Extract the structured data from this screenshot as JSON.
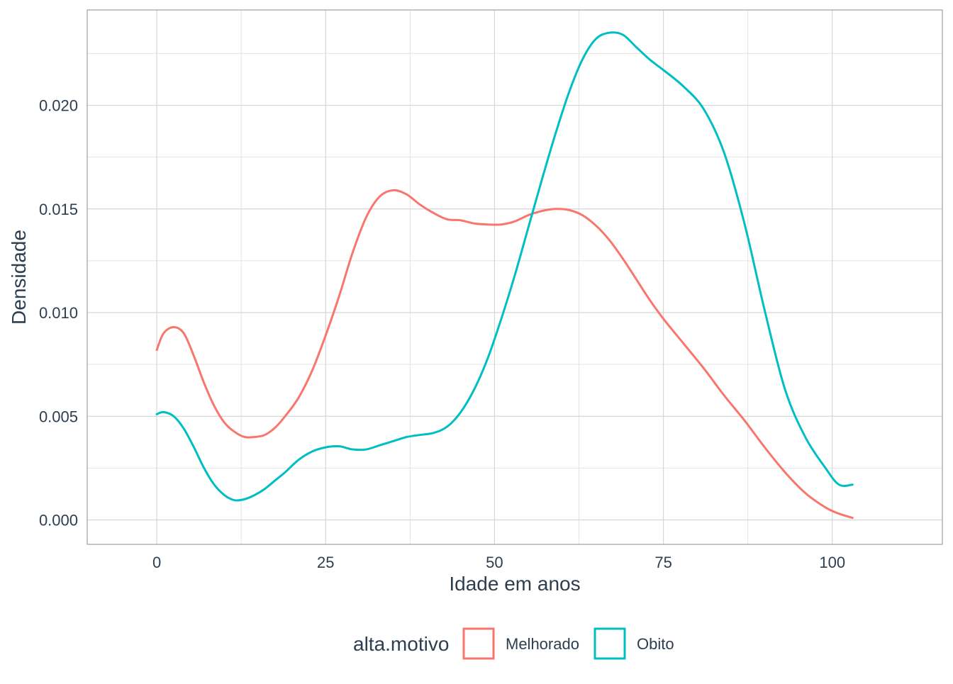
{
  "chart_data": {
    "type": "line",
    "subtype": "density",
    "title": "",
    "xlabel": "Idade em anos",
    "ylabel": "Densidade",
    "xlim": [
      -10.3,
      116.3
    ],
    "ylim": [
      -0.00118,
      0.0246
    ],
    "x_ticks": [
      0,
      25,
      50,
      75,
      100
    ],
    "x_tick_labels": [
      "0",
      "25",
      "50",
      "75",
      "100"
    ],
    "y_ticks": [
      0.0,
      0.005,
      0.01,
      0.015,
      0.02
    ],
    "y_tick_labels": [
      "0.000",
      "0.005",
      "0.010",
      "0.015",
      "0.020"
    ],
    "grid": true,
    "panel_border": true,
    "legend": {
      "position": "bottom",
      "title": "alta.motivo",
      "entries": [
        "Melhorado",
        "Obito"
      ]
    },
    "series": [
      {
        "name": "Melhorado",
        "color": "#F8766D",
        "x": [
          0,
          1,
          2.5,
          4,
          5.5,
          7,
          8.5,
          10,
          11.5,
          13,
          14.5,
          16,
          17.5,
          19,
          21,
          23,
          25,
          27,
          29,
          31,
          33,
          35,
          37,
          39,
          41,
          43,
          45,
          47,
          49,
          51,
          53,
          55,
          57,
          59,
          61,
          63,
          65,
          67,
          69,
          71,
          73,
          75,
          78,
          81,
          84,
          87,
          90,
          93,
          96,
          99,
          101,
          103
        ],
        "y": [
          0.0082,
          0.009,
          0.0093,
          0.009,
          0.0079,
          0.0066,
          0.0055,
          0.0047,
          0.00425,
          0.004,
          0.004,
          0.0041,
          0.00445,
          0.005,
          0.0059,
          0.0072,
          0.0089,
          0.0108,
          0.0129,
          0.0146,
          0.0156,
          0.0159,
          0.0157,
          0.0152,
          0.0148,
          0.0145,
          0.01445,
          0.0143,
          0.01425,
          0.01425,
          0.0144,
          0.0147,
          0.0149,
          0.015,
          0.01495,
          0.0147,
          0.0142,
          0.0135,
          0.0126,
          0.0116,
          0.0106,
          0.0097,
          0.0085,
          0.0073,
          0.006,
          0.0048,
          0.0035,
          0.0023,
          0.0013,
          0.0006,
          0.0003,
          0.0001
        ]
      },
      {
        "name": "Obito",
        "color": "#00BFC4",
        "x": [
          0,
          1,
          2.5,
          4,
          5.5,
          7,
          8.5,
          10,
          11.5,
          13,
          14.5,
          16,
          17.5,
          19,
          21,
          23,
          25,
          27,
          29,
          31,
          33,
          35,
          37,
          39,
          41,
          43,
          45,
          47,
          49,
          51,
          53,
          55,
          57,
          59,
          61,
          63,
          65,
          67,
          69,
          71,
          73,
          75,
          78,
          81,
          84,
          87,
          90,
          93,
          96,
          99,
          101,
          103
        ],
        "y": [
          0.0051,
          0.0052,
          0.005,
          0.0044,
          0.0035,
          0.0025,
          0.0017,
          0.0012,
          0.00095,
          0.001,
          0.0012,
          0.0015,
          0.0019,
          0.0023,
          0.0029,
          0.0033,
          0.0035,
          0.00355,
          0.0034,
          0.0034,
          0.0036,
          0.0038,
          0.004,
          0.0041,
          0.0042,
          0.0045,
          0.0052,
          0.0063,
          0.0078,
          0.0097,
          0.0118,
          0.0141,
          0.0164,
          0.0186,
          0.0206,
          0.0222,
          0.0232,
          0.0235,
          0.0234,
          0.0228,
          0.0222,
          0.0217,
          0.0209,
          0.0198,
          0.0177,
          0.0143,
          0.0101,
          0.0063,
          0.004,
          0.0025,
          0.0017,
          0.0017
        ]
      }
    ]
  }
}
